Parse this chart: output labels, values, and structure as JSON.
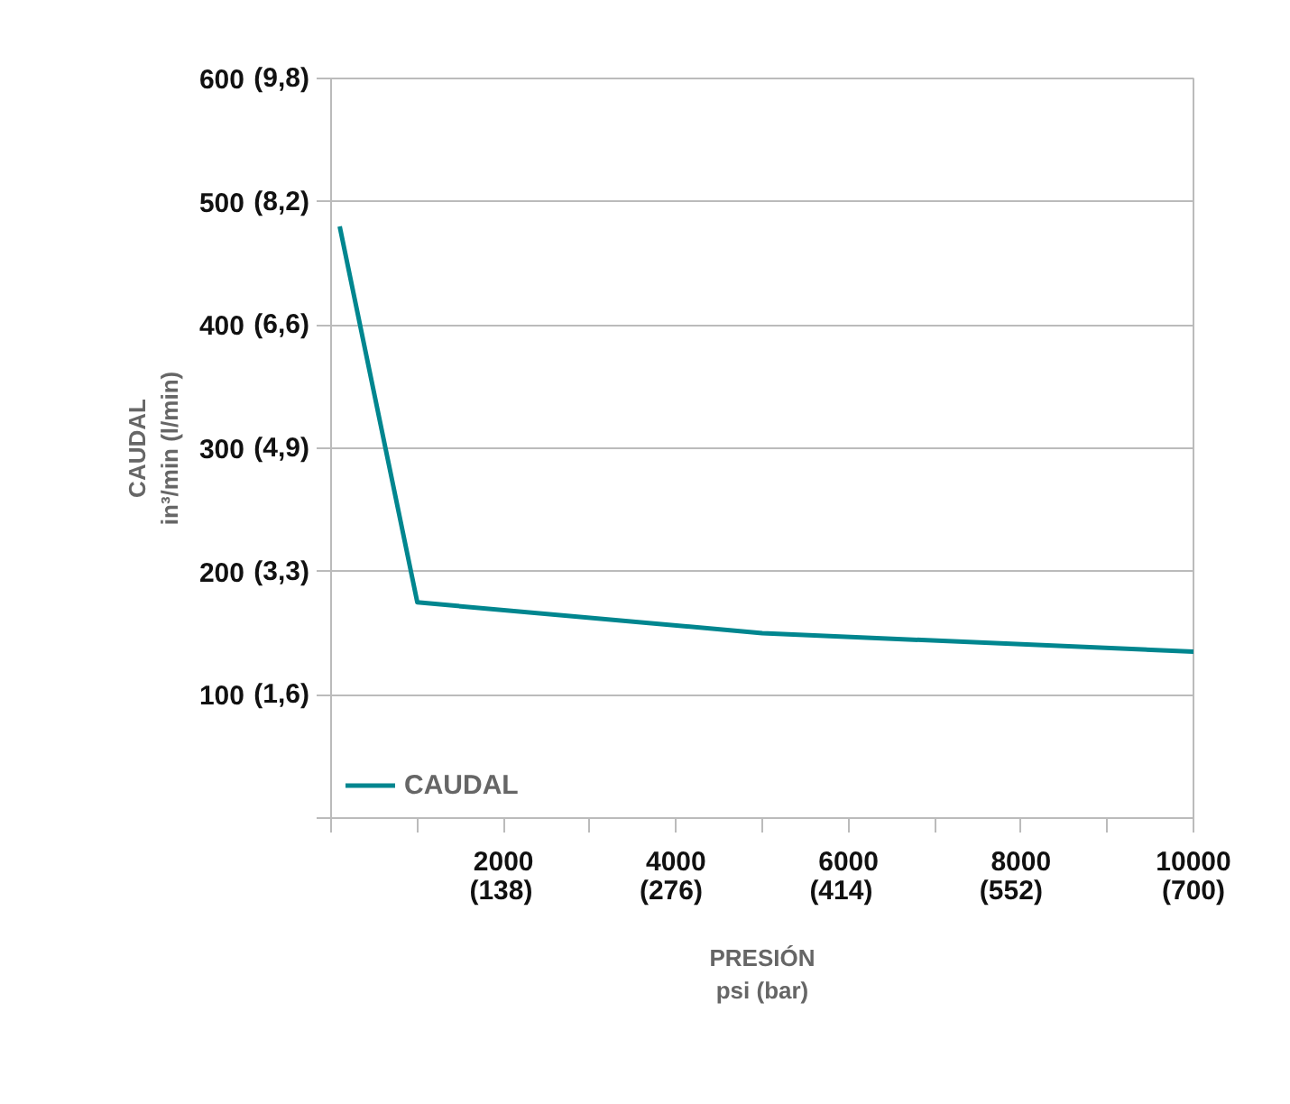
{
  "chart_data": {
    "type": "line",
    "xlabel": "PRESIÓN\npsi (bar)",
    "ylabel": "CAUDAL\nin³/min (l/min)",
    "x": [
      100,
      1000,
      5000,
      10000
    ],
    "series": [
      {
        "name": "CAUDAL",
        "color": "#00868f",
        "values": [
          480,
          175,
          150,
          135
        ]
      }
    ],
    "xlim": [
      0,
      10000
    ],
    "ylim": [
      0,
      600
    ],
    "xticks": [
      {
        "value": 0,
        "label": null
      },
      {
        "value": 1000,
        "label": null
      },
      2000,
      {
        "value": 3000,
        "label": null
      },
      4000,
      {
        "value": 5000,
        "label": null
      },
      6000,
      {
        "value": 7000,
        "label": null
      },
      8000,
      {
        "value": 9000,
        "label": null
      },
      10000
    ],
    "x2lim": [
      0,
      700
    ],
    "x2ticks": [
      {
        "value": 138,
        "label": "(138)"
      },
      {
        "value": 276,
        "label": "(276)"
      },
      {
        "value": 414,
        "label": "(414)"
      },
      {
        "value": 552,
        "label": "(552)"
      },
      {
        "value": 700,
        "label": "(700)"
      }
    ],
    "yticks": [
      100,
      200,
      300,
      400,
      500,
      600
    ],
    "y2lim": [
      0,
      9.832
    ],
    "y2ticks": [
      {
        "value": 0,
        "label": null
      },
      {
        "value": 1.639,
        "label": "(1,6)"
      },
      {
        "value": 3.277,
        "label": "(3,3)"
      },
      {
        "value": 4.916,
        "label": "(4,9)"
      },
      {
        "value": 6.555,
        "label": "(6,6)"
      },
      {
        "value": 8.194,
        "label": "(8,2)"
      },
      {
        "value": 9.832,
        "label": "(9,8)"
      }
    ],
    "grid": "y",
    "legend": "bottom left",
    "marker": "none",
    "line_style": "solid"
  }
}
